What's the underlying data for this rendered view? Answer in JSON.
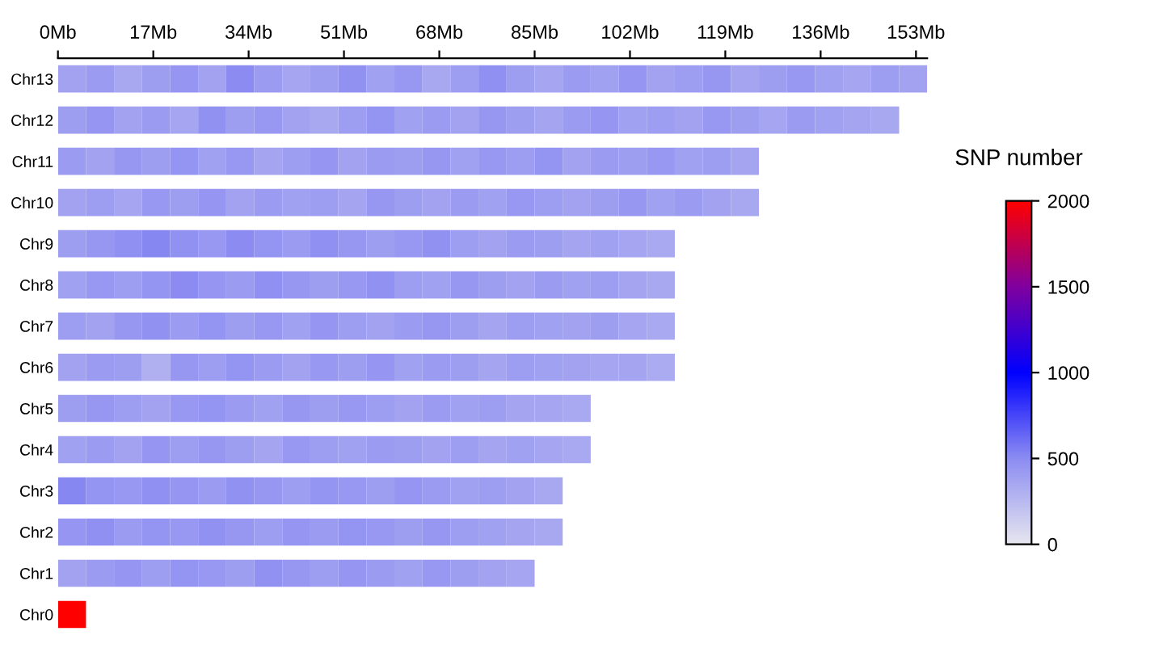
{
  "chart_data": {
    "type": "heatmap",
    "clabel": "SNP number",
    "xlim": [
      0,
      155
    ],
    "xticks": [
      {
        "value": 0,
        "label": "0Mb"
      },
      {
        "value": 17,
        "label": "17Mb"
      },
      {
        "value": 34,
        "label": "34Mb"
      },
      {
        "value": 51,
        "label": "51Mb"
      },
      {
        "value": 68,
        "label": "68Mb"
      },
      {
        "value": 85,
        "label": "85Mb"
      },
      {
        "value": 102,
        "label": "102Mb"
      },
      {
        "value": 119,
        "label": "119Mb"
      },
      {
        "value": 136,
        "label": "136Mb"
      },
      {
        "value": 153,
        "label": "153Mb"
      }
    ],
    "y_categories": [
      "Chr13",
      "Chr12",
      "Chr11",
      "Chr10",
      "Chr9",
      "Chr8",
      "Chr7",
      "Chr6",
      "Chr5",
      "Chr4",
      "Chr3",
      "Chr2",
      "Chr1",
      "Chr0"
    ],
    "cells": [
      [
        380,
        420,
        350,
        400,
        450,
        380,
        500,
        420,
        360,
        400,
        470,
        390,
        430,
        350,
        410,
        480,
        400,
        360,
        420,
        390,
        450,
        380,
        410,
        440,
        370,
        400,
        430,
        390,
        360,
        410,
        380
      ],
      [
        400,
        450,
        380,
        420,
        360,
        470,
        400,
        430,
        380,
        350,
        410,
        460,
        390,
        420,
        380,
        440,
        400,
        370,
        420,
        450,
        390,
        410,
        380,
        430,
        400,
        360,
        420,
        390,
        370,
        350,
        null
      ],
      [
        420,
        380,
        440,
        400,
        460,
        390,
        430,
        370,
        410,
        450,
        380,
        420,
        400,
        440,
        390,
        430,
        410,
        460,
        380,
        420,
        400,
        430,
        390,
        410,
        370,
        null,
        null,
        null,
        null,
        null,
        null
      ],
      [
        380,
        410,
        360,
        430,
        400,
        450,
        380,
        420,
        390,
        410,
        370,
        440,
        400,
        380,
        420,
        390,
        430,
        410,
        380,
        400,
        440,
        390,
        420,
        380,
        350,
        null,
        null,
        null,
        null,
        null,
        null
      ],
      [
        400,
        440,
        480,
        520,
        470,
        430,
        500,
        460,
        420,
        480,
        440,
        400,
        430,
        470,
        410,
        380,
        420,
        400,
        370,
        390,
        360,
        340,
        null,
        null,
        null,
        null,
        null,
        null,
        null,
        null,
        null
      ],
      [
        390,
        430,
        410,
        460,
        500,
        450,
        420,
        480,
        440,
        400,
        430,
        470,
        410,
        390,
        440,
        400,
        380,
        420,
        390,
        410,
        370,
        350,
        null,
        null,
        null,
        null,
        null,
        null,
        null,
        null,
        null
      ],
      [
        410,
        380,
        440,
        470,
        420,
        460,
        400,
        430,
        390,
        450,
        410,
        380,
        420,
        440,
        400,
        370,
        410,
        390,
        380,
        400,
        360,
        340,
        null,
        null,
        null,
        null,
        null,
        null,
        null,
        null,
        null
      ],
      [
        380,
        420,
        400,
        300,
        440,
        410,
        460,
        420,
        380,
        430,
        400,
        450,
        390,
        420,
        400,
        370,
        410,
        390,
        380,
        360,
        370,
        330,
        null,
        null,
        null,
        null,
        null,
        null,
        null,
        null,
        null
      ],
      [
        400,
        440,
        410,
        380,
        430,
        460,
        420,
        390,
        440,
        400,
        430,
        410,
        380,
        420,
        390,
        410,
        370,
        360,
        340,
        null,
        null,
        null,
        null,
        null,
        null,
        null,
        null,
        null,
        null,
        null,
        null
      ],
      [
        390,
        420,
        380,
        450,
        410,
        440,
        400,
        370,
        430,
        410,
        390,
        420,
        400,
        380,
        410,
        370,
        390,
        360,
        340,
        null,
        null,
        null,
        null,
        null,
        null,
        null,
        null,
        null,
        null,
        null,
        null
      ],
      [
        520,
        460,
        430,
        480,
        450,
        420,
        470,
        440,
        410,
        460,
        430,
        400,
        450,
        420,
        390,
        410,
        380,
        350,
        null,
        null,
        null,
        null,
        null,
        null,
        null,
        null,
        null,
        null,
        null,
        null,
        null
      ],
      [
        450,
        480,
        420,
        460,
        430,
        470,
        440,
        410,
        450,
        420,
        460,
        430,
        400,
        440,
        410,
        390,
        370,
        350,
        null,
        null,
        null,
        null,
        null,
        null,
        null,
        null,
        null,
        null,
        null,
        null,
        null
      ],
      [
        380,
        420,
        450,
        410,
        460,
        430,
        400,
        470,
        440,
        410,
        450,
        420,
        390,
        430,
        400,
        380,
        360,
        null,
        null,
        null,
        null,
        null,
        null,
        null,
        null,
        null,
        null,
        null,
        null,
        null,
        null
      ],
      [
        2000,
        null,
        null,
        null,
        null,
        null,
        null,
        null,
        null,
        null,
        null,
        null,
        null,
        null,
        null,
        null,
        null,
        null,
        null,
        null,
        null,
        null,
        null,
        null,
        null,
        null,
        null,
        null,
        null,
        null,
        null
      ]
    ],
    "clim": [
      0,
      2000
    ],
    "cticks": [
      0,
      500,
      1000,
      1500,
      2000
    ]
  }
}
